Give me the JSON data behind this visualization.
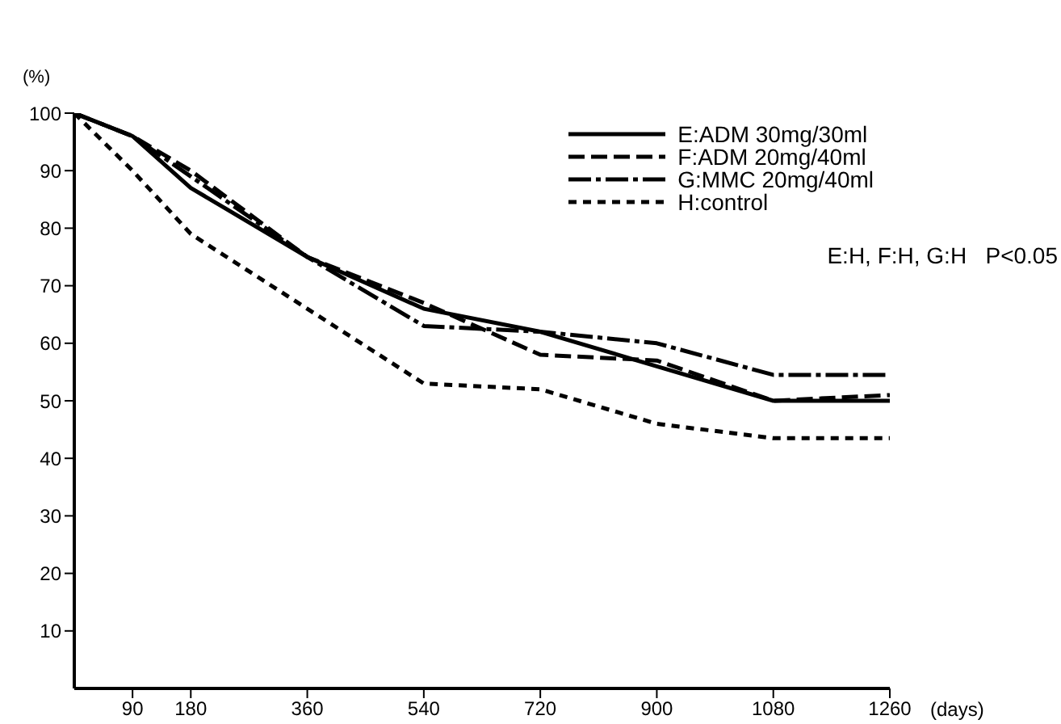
{
  "chart_data": {
    "type": "line",
    "xlabel": "(days)",
    "ylabel": "(%)",
    "x": [
      0,
      90,
      180,
      360,
      540,
      720,
      900,
      1080,
      1260
    ],
    "xlim": [
      0,
      1260
    ],
    "xticks": [
      90,
      180,
      360,
      540,
      720,
      900,
      1080,
      1260
    ],
    "ylim": [
      0,
      100
    ],
    "yticks": [
      10,
      20,
      30,
      40,
      50,
      60,
      70,
      80,
      90,
      100
    ],
    "grid": false,
    "legend": "top right",
    "marker": "none",
    "annotations": [
      "E:H, F:H, G:H   P<0.05"
    ],
    "series": [
      {
        "name": "E:ADM  30mg/30ml",
        "color": "#000000",
        "line_style": "solid",
        "values": [
          100,
          96,
          87,
          75,
          66,
          62,
          56,
          50,
          50
        ]
      },
      {
        "name": "F:ADM  20mg/40ml",
        "color": "#000000",
        "line_style": "dashed",
        "values": [
          100,
          96,
          90,
          75,
          67,
          58,
          57,
          50,
          51
        ]
      },
      {
        "name": "G:MMC  20mg/40ml",
        "color": "#000000",
        "line_style": "dashdot",
        "values": [
          100,
          96,
          89,
          75,
          63,
          62,
          60,
          54.5,
          54.5
        ]
      },
      {
        "name": "H:control",
        "color": "#000000",
        "line_style": "dotted",
        "values": [
          100,
          90,
          79,
          66,
          53,
          52,
          46,
          43.5,
          43.5
        ]
      }
    ]
  }
}
